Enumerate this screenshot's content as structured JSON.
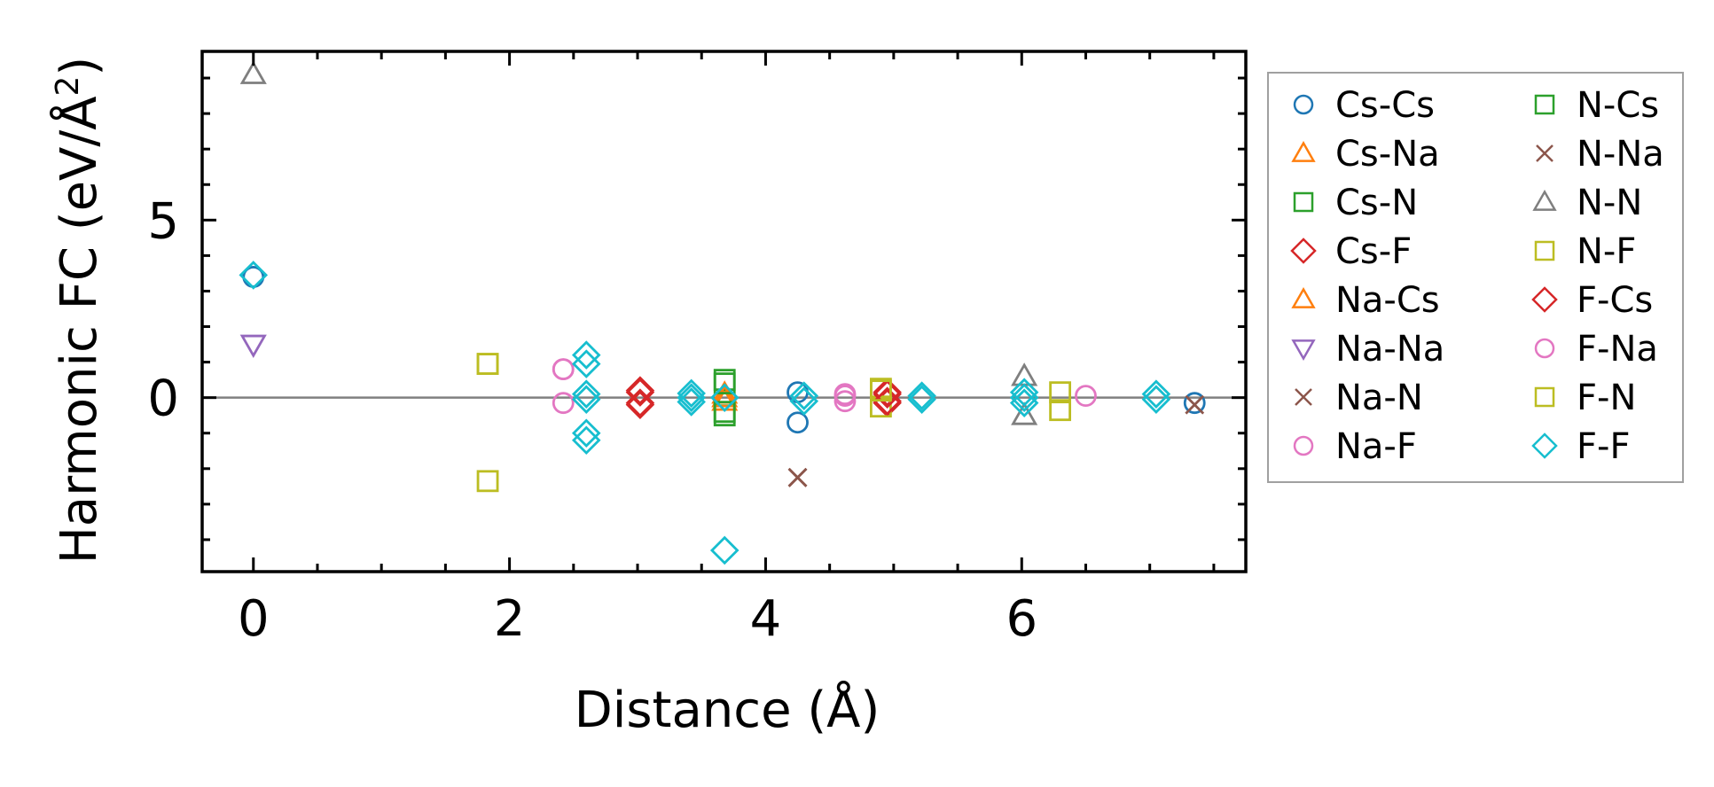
{
  "chart_data": {
    "type": "scatter",
    "title": "",
    "xlabel": "Distance (Å)",
    "ylabel_text": "Harmonic FC (eV/Å",
    "ylabel_sup": "2",
    "ylabel_close": ")",
    "xlim": [
      -0.4,
      7.75
    ],
    "ylim": [
      -4.9,
      9.75
    ],
    "xticks": [
      {
        "value": 0,
        "label": "0"
      },
      {
        "value": 2,
        "label": "2"
      },
      {
        "value": 4,
        "label": "4"
      },
      {
        "value": 6,
        "label": "6"
      }
    ],
    "yticks": [
      {
        "value": 0,
        "label": "0"
      },
      {
        "value": 5,
        "label": "5"
      }
    ],
    "zero_line": 0,
    "grid": false,
    "legend_placement": "outside-right",
    "colors": {
      "blue": "#1f77b4",
      "orange": "#ff7f0e",
      "green": "#2ca02c",
      "red": "#d62728",
      "purple": "#9467bd",
      "brown": "#8c564b",
      "pink": "#e377c2",
      "gray": "#7f7f7f",
      "olive": "#bcbd22",
      "cyan": "#17becf"
    },
    "series": [
      {
        "name": "Cs-Cs",
        "marker": "circle",
        "color": "#1f77b4",
        "points": [
          [
            0,
            3.4
          ],
          [
            4.25,
            0.15
          ],
          [
            4.25,
            -0.7
          ],
          [
            7.35,
            -0.15
          ]
        ]
      },
      {
        "name": "Cs-Na",
        "marker": "triangle-up",
        "color": "#ff7f0e",
        "points": [
          [
            3.68,
            0.1
          ],
          [
            3.68,
            -0.1
          ]
        ]
      },
      {
        "name": "Cs-N",
        "marker": "square",
        "color": "#2ca02c",
        "points": [
          [
            3.68,
            0.5
          ],
          [
            3.68,
            -0.5
          ]
        ]
      },
      {
        "name": "Cs-F",
        "marker": "diamond",
        "color": "#d62728",
        "points": [
          [
            3.02,
            0.15
          ],
          [
            3.02,
            -0.15
          ],
          [
            4.95,
            0.15
          ],
          [
            4.95,
            -0.15
          ]
        ]
      },
      {
        "name": "Na-Cs",
        "marker": "triangle-up",
        "color": "#ff7f0e",
        "points": [
          [
            3.68,
            0.0
          ]
        ]
      },
      {
        "name": "Na-Na",
        "marker": "triangle-down",
        "color": "#9467bd",
        "points": [
          [
            0,
            1.5
          ]
        ]
      },
      {
        "name": "Na-N",
        "marker": "x",
        "color": "#8c564b",
        "points": [
          [
            4.25,
            -2.25
          ],
          [
            7.35,
            -0.2
          ]
        ]
      },
      {
        "name": "Na-F",
        "marker": "circle",
        "color": "#e377c2",
        "points": [
          [
            2.42,
            0.8
          ],
          [
            2.42,
            -0.15
          ],
          [
            4.62,
            0.1
          ],
          [
            4.62,
            -0.1
          ],
          [
            6.5,
            0.05
          ]
        ]
      },
      {
        "name": "N-Cs",
        "marker": "square",
        "color": "#2ca02c",
        "points": [
          [
            3.68,
            0.4
          ],
          [
            3.68,
            -0.4
          ]
        ]
      },
      {
        "name": "N-Na",
        "marker": "x",
        "color": "#8c564b",
        "points": [
          [
            4.25,
            -2.25
          ]
        ]
      },
      {
        "name": "N-N",
        "marker": "triangle-up",
        "color": "#7f7f7f",
        "points": [
          [
            0,
            9.1
          ],
          [
            6.02,
            0.6
          ],
          [
            6.02,
            -0.5
          ]
        ]
      },
      {
        "name": "N-F",
        "marker": "square",
        "color": "#bcbd22",
        "points": [
          [
            1.83,
            0.95
          ],
          [
            1.83,
            -2.35
          ],
          [
            4.9,
            0.25
          ],
          [
            4.9,
            -0.25
          ],
          [
            6.3,
            0.15
          ],
          [
            6.3,
            -0.35
          ]
        ]
      },
      {
        "name": "F-Cs",
        "marker": "diamond",
        "color": "#d62728",
        "points": [
          [
            3.02,
            0.2
          ],
          [
            3.02,
            -0.2
          ],
          [
            4.95,
            0.1
          ],
          [
            4.95,
            -0.1
          ]
        ]
      },
      {
        "name": "F-Na",
        "marker": "circle",
        "color": "#e377c2",
        "points": [
          [
            2.42,
            0.8
          ],
          [
            4.62,
            0.05
          ]
        ]
      },
      {
        "name": "F-N",
        "marker": "square",
        "color": "#bcbd22",
        "points": [
          [
            1.83,
            0.95
          ],
          [
            4.9,
            0.2
          ]
        ]
      },
      {
        "name": "F-F",
        "marker": "diamond",
        "color": "#17becf",
        "points": [
          [
            0,
            3.45
          ],
          [
            2.6,
            1.2
          ],
          [
            2.6,
            0.95
          ],
          [
            2.6,
            0.1
          ],
          [
            2.6,
            -0.05
          ],
          [
            2.6,
            -1.0
          ],
          [
            2.6,
            -1.2
          ],
          [
            3.42,
            0.12
          ],
          [
            3.42,
            0.0
          ],
          [
            3.42,
            -0.12
          ],
          [
            3.68,
            0.0
          ],
          [
            3.68,
            -4.3
          ],
          [
            4.3,
            0.05
          ],
          [
            4.3,
            -0.1
          ],
          [
            5.22,
            0.05
          ],
          [
            5.22,
            -0.05
          ],
          [
            6.02,
            0.15
          ],
          [
            6.02,
            0.0
          ],
          [
            6.02,
            -0.15
          ],
          [
            7.05,
            0.1
          ],
          [
            7.05,
            -0.05
          ]
        ]
      }
    ]
  }
}
